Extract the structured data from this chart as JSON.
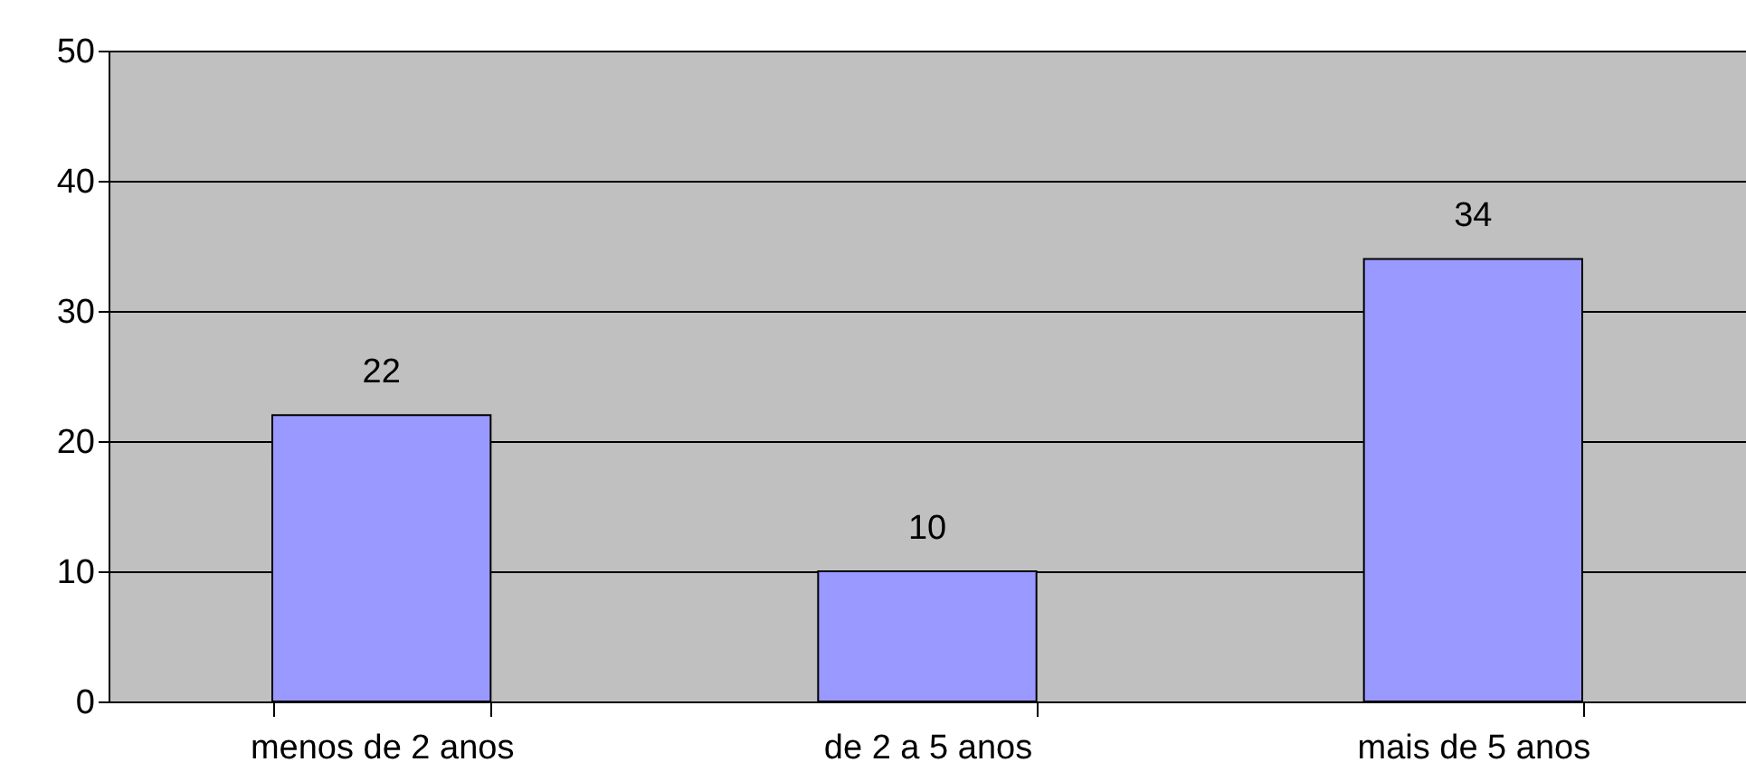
{
  "chart_data": {
    "type": "bar",
    "categories": [
      "menos de 2 anos",
      "de 2 a 5 anos",
      "mais de 5 anos"
    ],
    "values": [
      22,
      10,
      34
    ],
    "color": "#9999ff",
    "ylim": [
      0,
      50
    ],
    "yticks": [
      0,
      10,
      20,
      30,
      40,
      50
    ],
    "grid": "y",
    "data_labels": true
  }
}
